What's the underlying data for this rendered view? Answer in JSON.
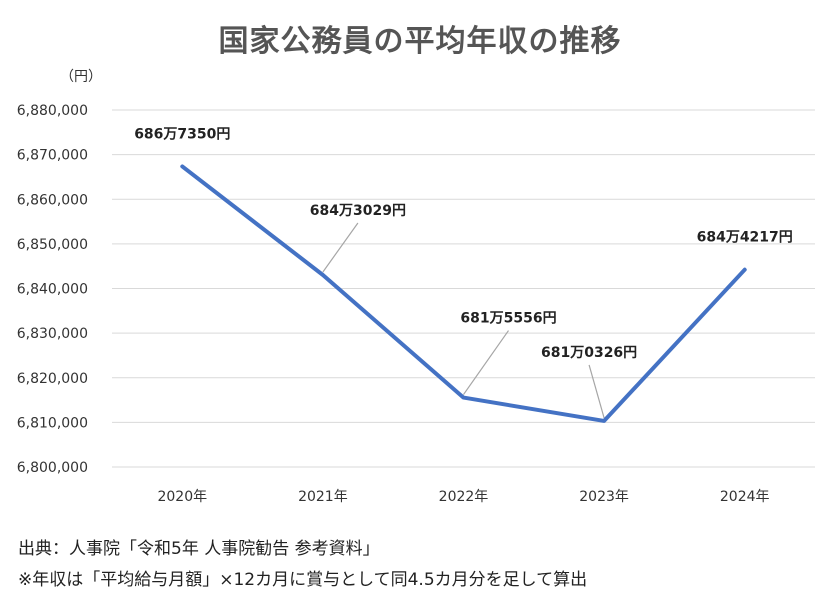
{
  "chart_data": {
    "type": "line",
    "title": "国家公務員の平均年収の推移",
    "unit_label": "（円）",
    "categories": [
      "2020年",
      "2021年",
      "2022年",
      "2023年",
      "2024年"
    ],
    "series": [
      {
        "values": [
          6867350,
          6843029,
          6815556,
          6810326,
          6844217
        ],
        "data_labels": [
          "686万7350円",
          "684万3029円",
          "681万5556円",
          "681万0326円",
          "684万4217円"
        ]
      }
    ],
    "ylim": [
      6800000,
      6880000
    ],
    "y_ticks": [
      6800000,
      6810000,
      6820000,
      6830000,
      6840000,
      6850000,
      6860000,
      6870000,
      6880000
    ],
    "y_tick_labels": [
      "6,800,000",
      "6,810,000",
      "6,820,000",
      "6,830,000",
      "6,840,000",
      "6,850,000",
      "6,860,000",
      "6,870,000",
      "6,880,000"
    ],
    "grid": true,
    "legend": "none",
    "line_color": "#4472C4",
    "grid_color": "#d9d9d9",
    "leader_line_color": "#a6a6a6"
  },
  "notes": {
    "source": "出典：人事院「令和5年 人事院勧告 参考資料」",
    "footnote": "※年収は「平均給与月額」×12カ月に賞与として同4.5カ月分を足して算出"
  }
}
